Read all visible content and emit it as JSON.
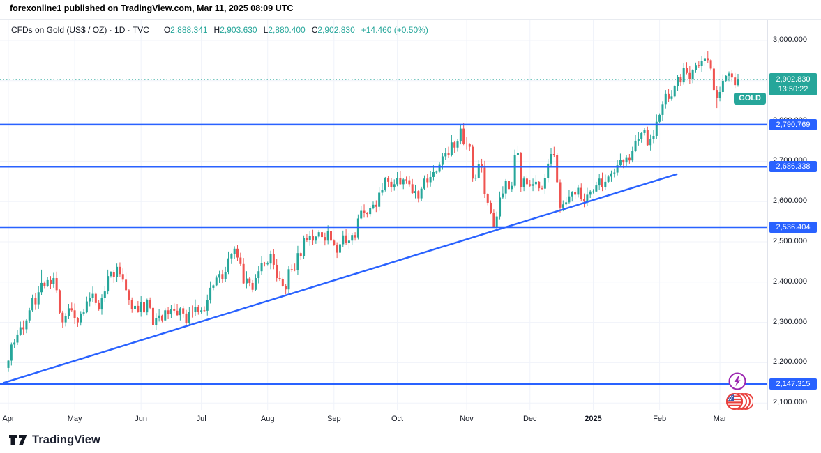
{
  "attribution": "forexonline1 published on TradingView.com, Mar 11, 2025 08:09 UTC",
  "legend": {
    "symbol_title": "CFDs on Gold (US$ / OZ) · 1D · TVC",
    "open_label": "O",
    "open": "2,888.341",
    "high_label": "H",
    "high": "2,903.630",
    "low_label": "L",
    "low": "2,880.400",
    "close_label": "C",
    "close": "2,902.830",
    "change": "+14.460 (+0.50%)"
  },
  "price_scale": {
    "ticks": [
      {
        "label": "3,000.000",
        "price": 3000
      },
      {
        "label": "2,900.000",
        "price": 2900
      },
      {
        "label": "2,800.000",
        "price": 2800
      },
      {
        "label": "2,700.000",
        "price": 2700
      },
      {
        "label": "2,600.000",
        "price": 2600
      },
      {
        "label": "2,500.000",
        "price": 2500
      },
      {
        "label": "2,400.000",
        "price": 2400
      },
      {
        "label": "2,300.000",
        "price": 2300
      },
      {
        "label": "2,200.000",
        "price": 2200
      },
      {
        "label": "2,100.000",
        "price": 2100
      }
    ]
  },
  "levels": [
    {
      "label": "2,790.769",
      "price": 2790.769
    },
    {
      "label": "2,686.338",
      "price": 2686.338
    },
    {
      "label": "2,536.404",
      "price": 2536.404
    },
    {
      "label": "2,147.315",
      "price": 2147.315
    }
  ],
  "last_price": {
    "symbol": "GOLD",
    "label": "2,902.830",
    "countdown": "13:50:22",
    "price": 2902.83
  },
  "time_scale": {
    "months": [
      {
        "label": "Apr",
        "index": 0
      },
      {
        "label": "May",
        "index": 22
      },
      {
        "label": "Jun",
        "index": 44
      },
      {
        "label": "Jul",
        "index": 64
      },
      {
        "label": "Aug",
        "index": 86
      },
      {
        "label": "Sep",
        "index": 108
      },
      {
        "label": "Oct",
        "index": 129
      },
      {
        "label": "Nov",
        "index": 152
      },
      {
        "label": "Dec",
        "index": 173
      },
      {
        "label": "2025",
        "index": 194,
        "bold": true
      },
      {
        "label": "Feb",
        "index": 216
      },
      {
        "label": "Mar",
        "index": 236
      }
    ]
  },
  "chart_data": {
    "type": "candlestick",
    "title": "CFDs on Gold (US$ / OZ) · 1D · TVC",
    "ylim": [
      2080,
      3020
    ],
    "grid_prices": [
      2100,
      2200,
      2300,
      2400,
      2500,
      2600,
      2700,
      2800,
      2900,
      3000
    ],
    "first_open": 2187,
    "closes": [
      2205,
      2245,
      2250,
      2270,
      2288,
      2283,
      2305,
      2330,
      2360,
      2345,
      2375,
      2398,
      2390,
      2405,
      2395,
      2410,
      2380,
      2324,
      2300,
      2315,
      2335,
      2330,
      2310,
      2300,
      2322,
      2325,
      2352,
      2360,
      2371,
      2348,
      2332,
      2360,
      2377,
      2415,
      2425,
      2412,
      2438,
      2420,
      2406,
      2380,
      2356,
      2333,
      2341,
      2327,
      2350,
      2325,
      2355,
      2336,
      2293,
      2310,
      2317,
      2305,
      2330,
      2320,
      2333,
      2329,
      2318,
      2335,
      2322,
      2298,
      2327,
      2326,
      2339,
      2327,
      2330,
      2329,
      2356,
      2386,
      2392,
      2411,
      2420,
      2408,
      2424,
      2459,
      2469,
      2483,
      2461,
      2445,
      2397,
      2409,
      2398,
      2381,
      2410,
      2427,
      2448,
      2446,
      2446,
      2470,
      2443,
      2410,
      2408,
      2390,
      2382,
      2432,
      2431,
      2430,
      2472,
      2465,
      2509,
      2504,
      2514,
      2503,
      2513,
      2524,
      2512,
      2503,
      2527,
      2503,
      2493,
      2473,
      2494,
      2516,
      2497,
      2503,
      2517,
      2511,
      2558,
      2577,
      2572,
      2569,
      2584,
      2592,
      2587,
      2622,
      2629,
      2658,
      2649,
      2635,
      2643,
      2658,
      2643,
      2655,
      2653,
      2643,
      2621,
      2626,
      2608,
      2632,
      2657,
      2648,
      2661,
      2673,
      2674,
      2691,
      2712,
      2721,
      2715,
      2747,
      2734,
      2749,
      2781,
      2744,
      2743,
      2736,
      2657,
      2659,
      2692,
      2684,
      2618,
      2597,
      2572,
      2536,
      2563,
      2610,
      2620,
      2652,
      2631,
      2639,
      2716,
      2721,
      2635,
      2657,
      2643,
      2639,
      2643,
      2649,
      2633,
      2632,
      2659,
      2694,
      2718,
      2716,
      2648,
      2585,
      2593,
      2598,
      2613,
      2624,
      2617,
      2634,
      2606,
      2600,
      2617,
      2625,
      2625,
      2640,
      2657,
      2635,
      2649,
      2662,
      2670,
      2672,
      2690,
      2703,
      2697,
      2710,
      2702,
      2725,
      2751,
      2755,
      2770,
      2777,
      2740,
      2755,
      2763,
      2798,
      2815,
      2842,
      2867,
      2855,
      2861,
      2887,
      2909,
      2896,
      2932,
      2919,
      2904,
      2926,
      2939,
      2936,
      2949,
      2956,
      2951,
      2930,
      2877,
      2858,
      2872,
      2900,
      2912,
      2918,
      2908,
      2889,
      2903
    ],
    "wick_overrides": {
      "high": {
        "11": 2431
      },
      "low": {
        "0": 2177,
        "161": 2536.4,
        "235": 2832
      }
    },
    "horizontal_levels": [
      2790.769,
      2686.338,
      2536.404,
      2147.315
    ],
    "trendline": {
      "i1": -1.6,
      "price1": 2150,
      "i2": 221.7,
      "price2": 2668
    },
    "last_price": 2902.83
  },
  "footer": {
    "brand": "TradingView"
  },
  "icons": {
    "lightning": "economic-event-lightning",
    "flags": "us-economic-events-cluster"
  },
  "colors": {
    "up": "#26a69a",
    "down": "#ef5350",
    "blue": "#2962ff",
    "teal_badge": "#26a69a",
    "text": "#131722",
    "grid": "#f0f3fa",
    "axis_border": "#e0e3eb",
    "event_purple": "#9c27b0",
    "event_red": "#e9403d"
  }
}
